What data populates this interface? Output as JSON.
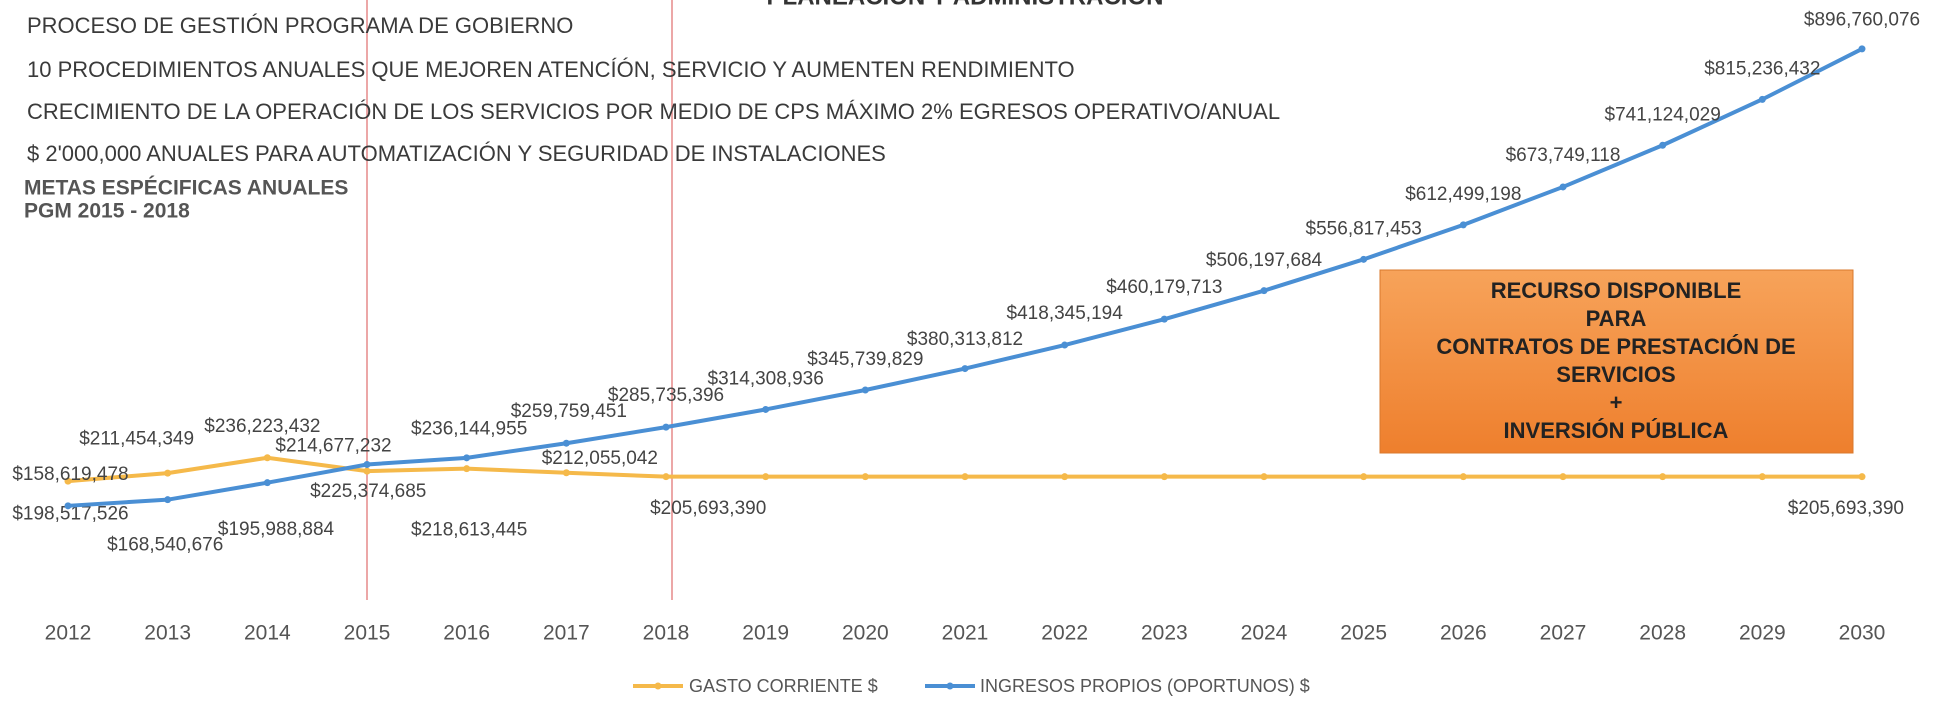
{
  "chart_data": {
    "type": "line",
    "title": "PLANEACIÓN Y ADMINISTRACIÓN",
    "header_lines": [
      "PROCESO DE GESTIÓN PROGRAMA DE GOBIERNO",
      "10 PROCEDIMIENTOS ANUALES QUE MEJOREN ATENCÍÓN, SERVICIO Y AUMENTEN RENDIMIENTO",
      "CRECIMIENTO DE LA OPERACIÓN DE LOS SERVICIOS POR MEDIO DE CPS MÁXIMO 2% EGRESOS OPERATIVO/ANUAL",
      "$ 2'000,000 ANUALES PARA AUTOMATIZACIÓN Y SEGURIDAD DE INSTALACIONES"
    ],
    "subtitle_lines": [
      "METAS ESPÉCIFICAS ANUALES",
      "PGM 2015 - 2018"
    ],
    "annotation_lines": [
      "RECURSO DISPONIBLE",
      "PARA",
      "CONTRATOS DE PRESTACIÓN DE",
      "SERVICIOS",
      "+",
      "INVERSIÓN PÚBLICA"
    ],
    "categories": [
      "2012",
      "2013",
      "2014",
      "2015",
      "2016",
      "2017",
      "2018",
      "2019",
      "2020",
      "2021",
      "2022",
      "2023",
      "2024",
      "2025",
      "2026",
      "2027",
      "2028",
      "2029",
      "2030"
    ],
    "series": [
      {
        "name": "GASTO CORRIENTE $",
        "color": "#f5b94a",
        "values": [
          198517526,
          211454349,
          236223432,
          214677232,
          218613445,
          212055042,
          205693390,
          205693390,
          205693390,
          205693390,
          205693390,
          205693390,
          205693390,
          205693390,
          205693390,
          205693390,
          205693390,
          205693390,
          205693390
        ],
        "value_labels": [
          "$198,517,526",
          "$211,454,349",
          "$236,223,432",
          "$214,677,232",
          "$218,613,445",
          "$212,055,042",
          "$205,693,390",
          null,
          null,
          null,
          null,
          null,
          null,
          null,
          null,
          null,
          null,
          null,
          "$205,693,390"
        ]
      },
      {
        "name": "INGRESOS PROPIOS (OPORTUNOS) $",
        "color": "#4a8fd4",
        "values": [
          158619478,
          168540676,
          195988884,
          225374685,
          236144955,
          259759451,
          285735396,
          314308936,
          345739829,
          380313812,
          418345194,
          460179713,
          506197684,
          556817453,
          612499198,
          673749118,
          741124029,
          815236432,
          896760076
        ],
        "value_labels": [
          "$158,619,478",
          "$168,540,676",
          "$195,988,884",
          "$225,374,685",
          "$236,144,955",
          "$259,759,451",
          "$285,735,396",
          "$314,308,936",
          "$345,739,829",
          "$380,313,812",
          "$418,345,194",
          "$460,179,713",
          "$506,197,684",
          "$556,817,453",
          "$612,499,198",
          "$673,749,118",
          "$741,124,029",
          "$815,236,432",
          "$896,760,076"
        ]
      }
    ]
  }
}
